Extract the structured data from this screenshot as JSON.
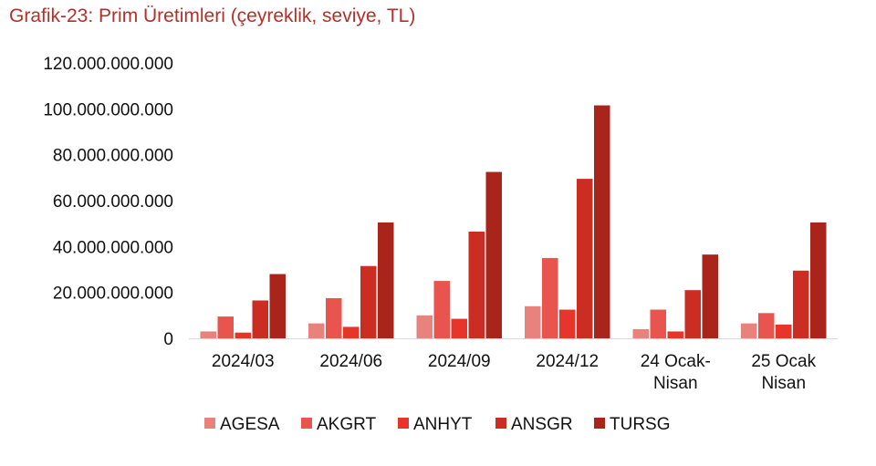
{
  "chart_data": {
    "type": "bar",
    "title": "Grafik-23: Prim Üretimleri (çeyreklik, seviye, TL)",
    "categories": [
      [
        "2024/03"
      ],
      [
        "2024/06"
      ],
      [
        "2024/09"
      ],
      [
        "2024/12"
      ],
      [
        "24 Ocak-",
        "Nisan"
      ],
      [
        "25 Ocak",
        "Nisan"
      ]
    ],
    "series": [
      {
        "name": "AGESA",
        "color": "#e8827c",
        "values": [
          3000000000,
          6500000000,
          10000000000,
          14000000000,
          4000000000,
          6500000000
        ]
      },
      {
        "name": "AKGRT",
        "color": "#e9544e",
        "values": [
          9500000000,
          17500000000,
          25000000000,
          35000000000,
          12500000000,
          11000000000
        ]
      },
      {
        "name": "ANHYT",
        "color": "#e8352b",
        "values": [
          2500000000,
          5000000000,
          8500000000,
          12500000000,
          3000000000,
          6000000000
        ]
      },
      {
        "name": "ANSGR",
        "color": "#cc2d22",
        "values": [
          16500000000,
          31500000000,
          46500000000,
          69500000000,
          21000000000,
          29500000000
        ]
      },
      {
        "name": "TURSG",
        "color": "#a9251c",
        "values": [
          28000000000,
          50500000000,
          72500000000,
          101500000000,
          36500000000,
          50500000000
        ]
      }
    ],
    "yticks": [
      "0",
      "20.000.000.000",
      "40.000.000.000",
      "60.000.000.000",
      "80.000.000.000",
      "100.000.000.000",
      "120.000.000.000"
    ],
    "ylim": [
      0,
      120000000000
    ],
    "grid": false,
    "legend_position": "bottom"
  }
}
